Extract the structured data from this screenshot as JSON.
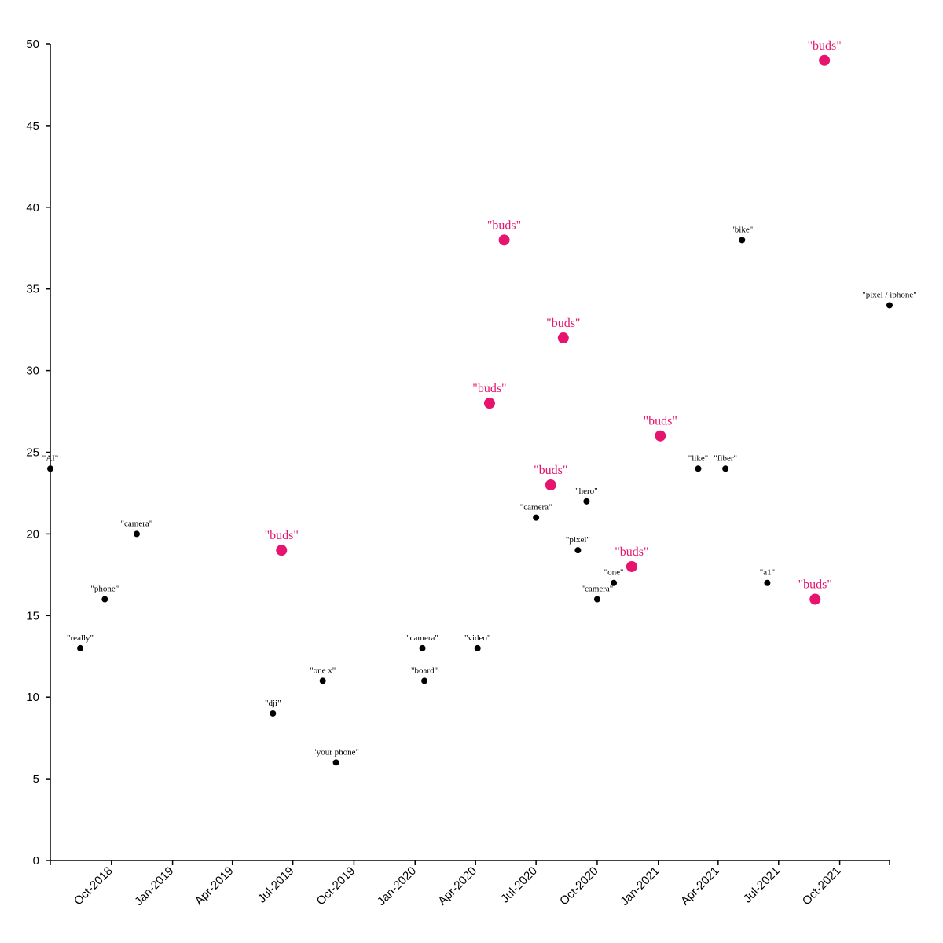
{
  "chart_data": {
    "type": "scatter",
    "title": "",
    "xlabel": "",
    "ylabel": "",
    "ylim": [
      0,
      50
    ],
    "xlim": [
      "2018-07-01",
      "2021-12-15"
    ],
    "y_ticks": [
      0,
      5,
      10,
      15,
      20,
      25,
      30,
      35,
      40,
      45,
      50
    ],
    "x_ticks": [
      {
        "date": "2018-10-01",
        "label": "Oct-2018"
      },
      {
        "date": "2019-01-01",
        "label": "Jan-2019"
      },
      {
        "date": "2019-04-01",
        "label": "Apr-2019"
      },
      {
        "date": "2019-07-01",
        "label": "Jul-2019"
      },
      {
        "date": "2019-10-01",
        "label": "Oct-2019"
      },
      {
        "date": "2020-01-01",
        "label": "Jan-2020"
      },
      {
        "date": "2020-04-01",
        "label": "Apr-2020"
      },
      {
        "date": "2020-07-01",
        "label": "Jul-2020"
      },
      {
        "date": "2020-10-01",
        "label": "Oct-2020"
      },
      {
        "date": "2021-01-01",
        "label": "Jan-2021"
      },
      {
        "date": "2021-04-01",
        "label": "Apr-2021"
      },
      {
        "date": "2021-07-01",
        "label": "Jul-2021"
      },
      {
        "date": "2021-10-01",
        "label": "Oct-2021"
      }
    ],
    "grid": false,
    "colors": {
      "normal": "#000000",
      "highlight": "#e6136f"
    },
    "points": [
      {
        "date": "2018-07-01",
        "y": 24,
        "label": "\"AI\"",
        "highlight": false
      },
      {
        "date": "2018-08-15",
        "y": 13,
        "label": "\"really\"",
        "highlight": false
      },
      {
        "date": "2018-09-21",
        "y": 16,
        "label": "\"phone\"",
        "highlight": false
      },
      {
        "date": "2018-11-08",
        "y": 20,
        "label": "\"camera\"",
        "highlight": false
      },
      {
        "date": "2019-06-01",
        "y": 9,
        "label": "\"dji\"",
        "highlight": false
      },
      {
        "date": "2019-06-14",
        "y": 19,
        "label": "\"buds\"",
        "highlight": true
      },
      {
        "date": "2019-08-15",
        "y": 11,
        "label": "\"one x\"",
        "highlight": false
      },
      {
        "date": "2019-09-04",
        "y": 6,
        "label": "\"your phone\"",
        "highlight": false
      },
      {
        "date": "2020-01-12",
        "y": 13,
        "label": "\"camera\"",
        "highlight": false
      },
      {
        "date": "2020-01-15",
        "y": 11,
        "label": "\"board\"",
        "highlight": false
      },
      {
        "date": "2020-04-04",
        "y": 13,
        "label": "\"video\"",
        "highlight": false
      },
      {
        "date": "2020-04-22",
        "y": 28,
        "label": "\"buds\"",
        "highlight": true
      },
      {
        "date": "2020-05-14",
        "y": 38,
        "label": "\"buds\"",
        "highlight": true
      },
      {
        "date": "2020-07-01",
        "y": 21,
        "label": "\"camera\"",
        "highlight": false
      },
      {
        "date": "2020-07-23",
        "y": 23,
        "label": "\"buds\"",
        "highlight": true
      },
      {
        "date": "2020-08-11",
        "y": 32,
        "label": "\"buds\"",
        "highlight": true
      },
      {
        "date": "2020-09-02",
        "y": 19,
        "label": "\"pixel\"",
        "highlight": false
      },
      {
        "date": "2020-09-15",
        "y": 22,
        "label": "\"hero\"",
        "highlight": false
      },
      {
        "date": "2020-10-01",
        "y": 16,
        "label": "\"camera\"",
        "highlight": false
      },
      {
        "date": "2020-10-26",
        "y": 17,
        "label": "\"one\"",
        "highlight": false
      },
      {
        "date": "2020-11-22",
        "y": 18,
        "label": "\"buds\"",
        "highlight": true
      },
      {
        "date": "2021-01-04",
        "y": 26,
        "label": "\"buds\"",
        "highlight": true
      },
      {
        "date": "2021-03-02",
        "y": 24,
        "label": "\"like\"",
        "highlight": false
      },
      {
        "date": "2021-04-12",
        "y": 24,
        "label": "\"fiber\"",
        "highlight": false
      },
      {
        "date": "2021-05-07",
        "y": 38,
        "label": "\"bike\"",
        "highlight": false
      },
      {
        "date": "2021-06-14",
        "y": 17,
        "label": "\"a1\"",
        "highlight": false
      },
      {
        "date": "2021-08-25",
        "y": 16,
        "label": "\"buds\"",
        "highlight": true
      },
      {
        "date": "2021-09-08",
        "y": 49,
        "label": "\"buds\"",
        "highlight": true
      },
      {
        "date": "2021-12-15",
        "y": 34,
        "label": "\"pixel / iphone\"",
        "highlight": false
      }
    ]
  }
}
